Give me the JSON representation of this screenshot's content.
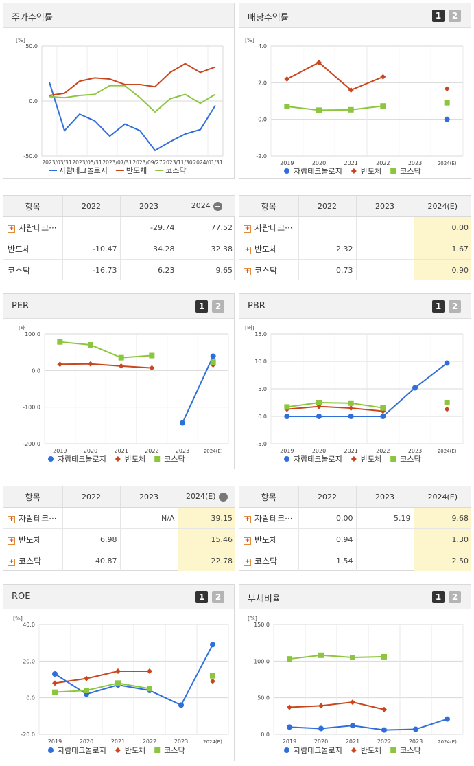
{
  "colors": {
    "series1": "#2f6fdc",
    "series2": "#c9461f",
    "series3": "#8cc63f",
    "grid": "#d8d8d8",
    "highlight": "#fdf6cc"
  },
  "legend_names": [
    "자람테크놀로지",
    "반도체",
    "코스닥"
  ],
  "charts": {
    "stock": {
      "title": "주가수익률",
      "unit": "[%]",
      "chart_data": {
        "type": "line",
        "y_ticks": [
          "50.0",
          "0.0",
          "-50.0"
        ],
        "ylim": [
          -50,
          50
        ],
        "x_ticks": [
          "2023/03/31",
          "2023/05/31",
          "2023/07/31",
          "2023/09/27",
          "2023/11/30",
          "2024/01/31"
        ],
        "x_count": 12,
        "series": [
          {
            "name": "자람테크놀로지",
            "values": [
              17,
              -27,
              -12,
              -18,
              -32,
              -21,
              -27,
              -45,
              -37,
              -30,
              -26,
              -4
            ]
          },
          {
            "name": "반도체",
            "values": [
              5,
              7,
              18,
              21,
              20,
              15,
              15,
              13,
              26,
              34,
              26,
              31
            ]
          },
          {
            "name": "코스닥",
            "values": [
              4,
              3,
              5,
              6,
              14,
              14,
              3,
              -10,
              2,
              6,
              -2,
              6
            ]
          }
        ]
      }
    },
    "dividend": {
      "title": "배당수익률",
      "unit": "[%]",
      "page1": "1",
      "page2": "2",
      "chart_data": {
        "type": "line",
        "y_ticks": [
          "4.0",
          "2.0",
          "0.0",
          "-2.0"
        ],
        "ylim": [
          -2,
          4
        ],
        "categories": [
          "2019",
          "2020",
          "2021",
          "2022",
          "2023",
          "2024(E)"
        ],
        "series": [
          {
            "name": "자람테크놀로지",
            "values": [
              null,
              null,
              null,
              null,
              null,
              0.0
            ]
          },
          {
            "name": "반도체",
            "values": [
              2.2,
              3.1,
              1.6,
              2.32,
              null,
              1.67
            ]
          },
          {
            "name": "코스닥",
            "values": [
              0.7,
              0.5,
              0.52,
              0.73,
              null,
              0.9
            ]
          }
        ]
      }
    },
    "per": {
      "title": "PER",
      "unit": "[배]",
      "page1": "1",
      "page2": "2",
      "chart_data": {
        "type": "line",
        "y_ticks": [
          "100.0",
          "0.0",
          "-100.0",
          "-200.0"
        ],
        "ylim": [
          -200,
          100
        ],
        "categories": [
          "2019",
          "2020",
          "2021",
          "2022",
          "2023",
          "2024(E)"
        ],
        "series": [
          {
            "name": "자람테크놀로지",
            "values": [
              null,
              null,
              null,
              null,
              -143,
              39.15
            ]
          },
          {
            "name": "반도체",
            "values": [
              17,
              18,
              12,
              6.98,
              null,
              15.46
            ]
          },
          {
            "name": "코스닥",
            "values": [
              78,
              70,
              35,
              40.87,
              null,
              22.78
            ]
          }
        ]
      }
    },
    "pbr": {
      "title": "PBR",
      "unit": "[배]",
      "page1": "1",
      "page2": "2",
      "chart_data": {
        "type": "line",
        "y_ticks": [
          "15.0",
          "10.0",
          "5.0",
          "0.0",
          "-5.0"
        ],
        "ylim": [
          -5,
          15
        ],
        "categories": [
          "2019",
          "2020",
          "2021",
          "2022",
          "2023",
          "2024(E)"
        ],
        "series": [
          {
            "name": "자람테크놀로지",
            "values": [
              0.0,
              0.0,
              0.0,
              0.0,
              5.19,
              9.68
            ]
          },
          {
            "name": "반도체",
            "values": [
              1.3,
              1.8,
              1.5,
              0.94,
              null,
              1.3
            ]
          },
          {
            "name": "코스닥",
            "values": [
              1.7,
              2.5,
              2.4,
              1.54,
              null,
              2.5
            ]
          }
        ]
      }
    },
    "roe": {
      "title": "ROE",
      "unit": "[%]",
      "page1": "1",
      "page2": "2",
      "chart_data": {
        "type": "line",
        "y_ticks": [
          "40.0",
          "20.0",
          "0.0",
          "-20.0"
        ],
        "ylim": [
          -20,
          40
        ],
        "categories": [
          "2019",
          "2020",
          "2021",
          "2022",
          "2023",
          "2024(E)"
        ],
        "series": [
          {
            "name": "자람테크놀로지",
            "values": [
              13,
              2,
              7,
              4,
              -4,
              29
            ]
          },
          {
            "name": "반도체",
            "values": [
              8,
              10.5,
              14.5,
              14.5,
              null,
              9
            ]
          },
          {
            "name": "코스닥",
            "values": [
              3,
              4,
              8,
              5,
              null,
              12
            ]
          }
        ]
      }
    },
    "debt": {
      "title": "부채비율",
      "unit": "[%]",
      "page1": "1",
      "page2": "2",
      "chart_data": {
        "type": "line",
        "y_ticks": [
          "150.0",
          "100.0",
          "50.0",
          "0.0"
        ],
        "ylim": [
          0,
          150
        ],
        "categories": [
          "2019",
          "2020",
          "2021",
          "2022",
          "2023",
          "2024(E)"
        ],
        "series": [
          {
            "name": "자람테크놀로지",
            "values": [
              10,
              8,
              12,
              6,
              7,
              21
            ]
          },
          {
            "name": "반도체",
            "values": [
              37,
              39,
              44,
              34,
              null,
              null
            ]
          },
          {
            "name": "코스닥",
            "values": [
              103,
              108,
              105,
              106,
              null,
              null
            ]
          }
        ]
      }
    }
  },
  "tables": {
    "stock": {
      "headers": [
        "항목",
        "2022",
        "2023",
        "2024"
      ],
      "rows": [
        {
          "name": "자람테크···",
          "plus": "+",
          "cells": [
            "",
            "-29.74",
            "77.52"
          ]
        },
        {
          "name": "반도체",
          "plus": "",
          "cells": [
            "-10.47",
            "34.28",
            "32.38"
          ]
        },
        {
          "name": "코스닥",
          "plus": "",
          "cells": [
            "-16.73",
            "6.23",
            "9.65"
          ]
        }
      ]
    },
    "dividend": {
      "headers": [
        "항목",
        "2022",
        "2023",
        "2024(E)"
      ],
      "rows": [
        {
          "name": "자람테크···",
          "plus": "+",
          "cells": [
            "",
            "",
            "0.00"
          ]
        },
        {
          "name": "반도체",
          "plus": "+",
          "cells": [
            "2.32",
            "",
            "1.67"
          ]
        },
        {
          "name": "코스닥",
          "plus": "+",
          "cells": [
            "0.73",
            "",
            "0.90"
          ]
        }
      ]
    },
    "per": {
      "headers": [
        "항목",
        "2022",
        "2023",
        "2024(E)"
      ],
      "rows": [
        {
          "name": "자람테크···",
          "plus": "+",
          "cells": [
            "",
            "N/A",
            "39.15"
          ]
        },
        {
          "name": "반도체",
          "plus": "+",
          "cells": [
            "6.98",
            "",
            "15.46"
          ]
        },
        {
          "name": "코스닥",
          "plus": "+",
          "cells": [
            "40.87",
            "",
            "22.78"
          ]
        }
      ]
    },
    "pbr": {
      "headers": [
        "항목",
        "2022",
        "2023",
        "2024(E)"
      ],
      "rows": [
        {
          "name": "자람테크···",
          "plus": "+",
          "cells": [
            "0.00",
            "5.19",
            "9.68"
          ]
        },
        {
          "name": "반도체",
          "plus": "+",
          "cells": [
            "0.94",
            "",
            "1.30"
          ]
        },
        {
          "name": "코스닥",
          "plus": "+",
          "cells": [
            "1.54",
            "",
            "2.50"
          ]
        }
      ]
    }
  }
}
